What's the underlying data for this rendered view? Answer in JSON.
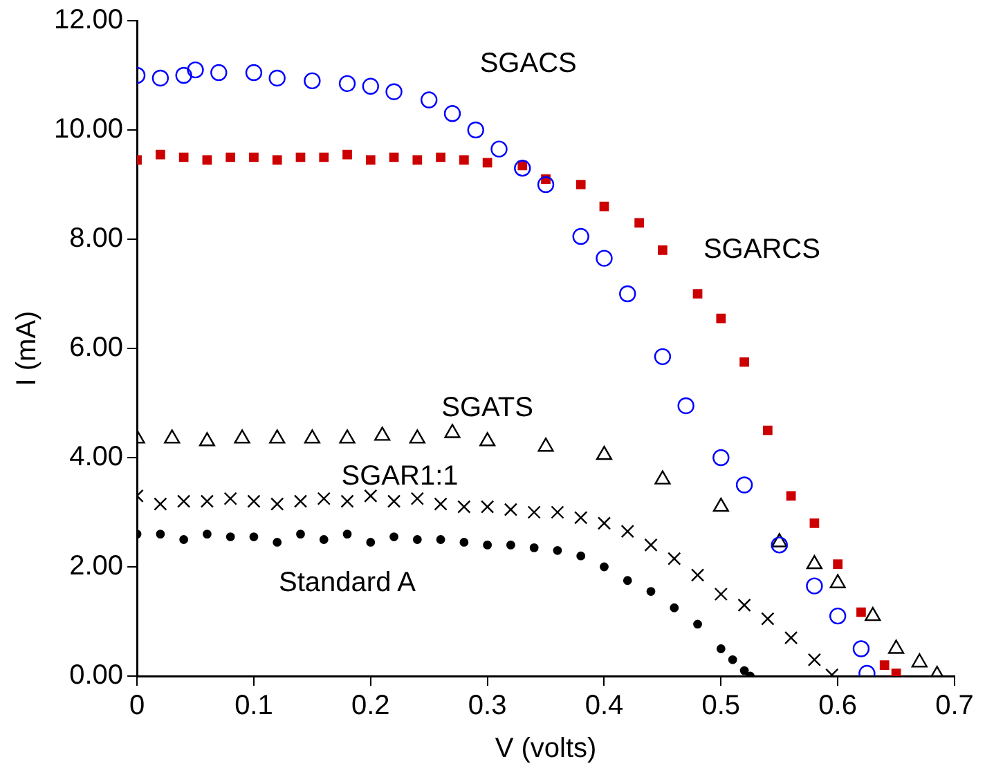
{
  "chart_data": {
    "type": "scatter",
    "xlabel": "V (volts)",
    "ylabel": "I (mA)",
    "xlim": [
      0,
      0.7
    ],
    "xticks": [
      0,
      0.1,
      0.2,
      0.3,
      0.4,
      0.5,
      0.6,
      0.7
    ],
    "ylim": [
      0,
      12
    ],
    "yticks": [
      {
        "value": 0,
        "label": "0.00"
      },
      {
        "value": 2,
        "label": "2.00"
      },
      {
        "value": 4,
        "label": "4.00"
      },
      {
        "value": 6,
        "label": "6.00"
      },
      {
        "value": 8,
        "label": "8.00"
      },
      {
        "value": 10,
        "label": "10.00"
      },
      {
        "value": 12,
        "label": "12.00"
      }
    ],
    "grid": false,
    "legend": false,
    "series": [
      {
        "name": "SGACS",
        "color": "#0000ff",
        "marker": "circle",
        "x": [
          0,
          0.02,
          0.04,
          0.05,
          0.07,
          0.1,
          0.12,
          0.15,
          0.18,
          0.2,
          0.22,
          0.25,
          0.27,
          0.29,
          0.31,
          0.33,
          0.35,
          0.38,
          0.4,
          0.42,
          0.45,
          0.47,
          0.5,
          0.52,
          0.55,
          0.58,
          0.6,
          0.62,
          0.625
        ],
        "values": [
          11.0,
          10.95,
          11.0,
          11.1,
          11.05,
          11.05,
          10.95,
          10.9,
          10.85,
          10.8,
          10.7,
          10.55,
          10.3,
          10.0,
          9.65,
          9.3,
          9.0,
          8.05,
          7.65,
          7.0,
          5.85,
          4.95,
          4.0,
          3.5,
          2.4,
          1.65,
          1.1,
          0.5,
          0.05
        ]
      },
      {
        "name": "SGARCS",
        "color": "#cc0000",
        "marker": "square",
        "x": [
          0,
          0.02,
          0.04,
          0.06,
          0.08,
          0.1,
          0.12,
          0.14,
          0.16,
          0.18,
          0.2,
          0.22,
          0.24,
          0.26,
          0.28,
          0.3,
          0.33,
          0.35,
          0.38,
          0.4,
          0.43,
          0.45,
          0.48,
          0.5,
          0.52,
          0.54,
          0.56,
          0.58,
          0.6,
          0.62,
          0.64,
          0.65
        ],
        "values": [
          9.45,
          9.55,
          9.5,
          9.45,
          9.5,
          9.5,
          9.45,
          9.5,
          9.5,
          9.55,
          9.45,
          9.5,
          9.45,
          9.5,
          9.45,
          9.4,
          9.35,
          9.1,
          9.0,
          8.6,
          8.3,
          7.8,
          7.0,
          6.55,
          5.75,
          4.5,
          3.3,
          2.8,
          2.05,
          1.17,
          0.2,
          0.05
        ]
      },
      {
        "name": "SGATS",
        "color": "#000000",
        "marker": "triangle",
        "x": [
          0,
          0.03,
          0.06,
          0.09,
          0.12,
          0.15,
          0.18,
          0.21,
          0.24,
          0.27,
          0.3,
          0.35,
          0.4,
          0.45,
          0.5,
          0.55,
          0.58,
          0.6,
          0.63,
          0.65,
          0.67,
          0.685
        ],
        "values": [
          4.35,
          4.35,
          4.3,
          4.35,
          4.35,
          4.35,
          4.35,
          4.4,
          4.35,
          4.45,
          4.3,
          4.2,
          4.05,
          3.6,
          3.1,
          2.45,
          2.05,
          1.7,
          1.1,
          0.5,
          0.25,
          0.02
        ]
      },
      {
        "name": "SGAR1:1",
        "color": "#000000",
        "marker": "cross",
        "x": [
          0,
          0.02,
          0.04,
          0.06,
          0.08,
          0.1,
          0.12,
          0.14,
          0.16,
          0.18,
          0.2,
          0.22,
          0.24,
          0.26,
          0.28,
          0.3,
          0.32,
          0.34,
          0.36,
          0.38,
          0.4,
          0.42,
          0.44,
          0.46,
          0.48,
          0.5,
          0.52,
          0.54,
          0.56,
          0.58,
          0.595
        ],
        "values": [
          3.3,
          3.15,
          3.2,
          3.2,
          3.25,
          3.2,
          3.15,
          3.2,
          3.25,
          3.2,
          3.3,
          3.2,
          3.25,
          3.15,
          3.1,
          3.1,
          3.05,
          3.0,
          3.0,
          2.9,
          2.8,
          2.65,
          2.4,
          2.15,
          1.85,
          1.5,
          1.3,
          1.05,
          0.7,
          0.3,
          0.02
        ]
      },
      {
        "name": "Standard A",
        "color": "#000000",
        "marker": "circle_filled",
        "x": [
          0,
          0.02,
          0.04,
          0.06,
          0.08,
          0.1,
          0.12,
          0.14,
          0.16,
          0.18,
          0.2,
          0.22,
          0.24,
          0.26,
          0.28,
          0.3,
          0.32,
          0.34,
          0.36,
          0.38,
          0.4,
          0.42,
          0.44,
          0.46,
          0.48,
          0.5,
          0.51,
          0.52,
          0.525
        ],
        "values": [
          2.6,
          2.6,
          2.5,
          2.6,
          2.55,
          2.55,
          2.45,
          2.6,
          2.5,
          2.6,
          2.45,
          2.55,
          2.5,
          2.5,
          2.45,
          2.4,
          2.4,
          2.35,
          2.3,
          2.2,
          2.0,
          1.75,
          1.55,
          1.25,
          0.95,
          0.5,
          0.3,
          0.1,
          0.0
        ]
      }
    ]
  }
}
